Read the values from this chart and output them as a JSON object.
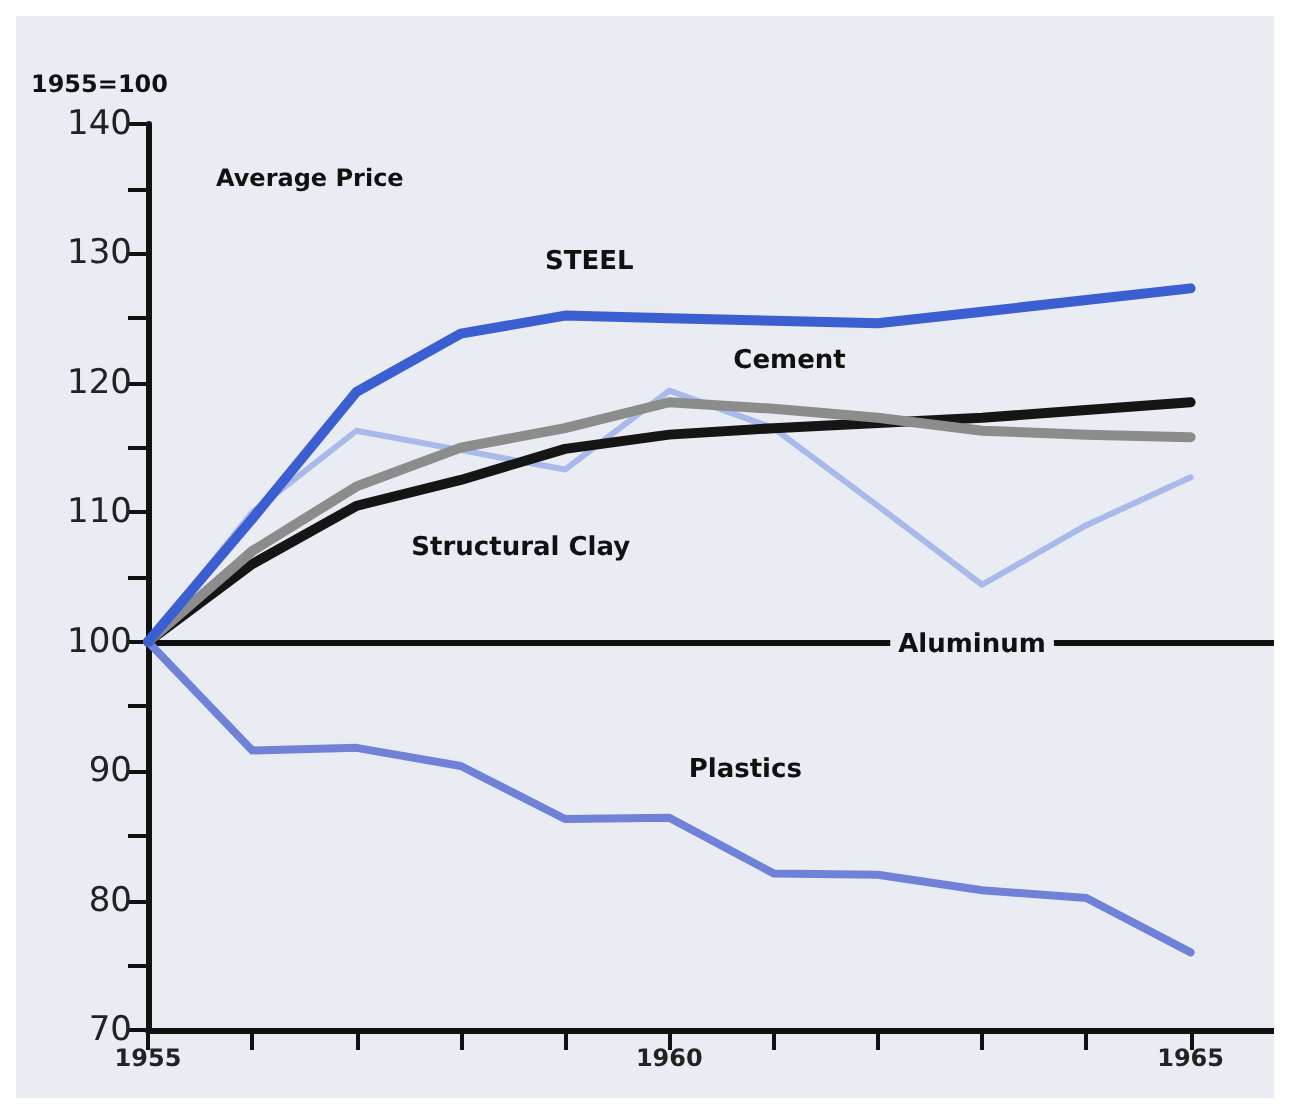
{
  "chart_data": {
    "type": "line",
    "ylabel": "1955=100",
    "annotations": [
      "Average Price"
    ],
    "x": [
      1955,
      1956,
      1957,
      1958,
      1959,
      1960,
      1961,
      1962,
      1963,
      1964,
      1965
    ],
    "series": [
      {
        "name": "STEEL",
        "color": "#3b5fd0",
        "values": [
          100,
          109.5,
          119.3,
          123.8,
          125.2,
          125,
          124.8,
          124.6,
          125.5,
          126.4,
          127.3
        ]
      },
      {
        "name": "Cement",
        "color": "#8c8c8c",
        "values": [
          100,
          107,
          112,
          115,
          116.5,
          118.5,
          118,
          117.3,
          116.3,
          116,
          115.8
        ]
      },
      {
        "name": "Structural Clay",
        "color": "#151515",
        "values": [
          100,
          106,
          110.5,
          112.5,
          114.9,
          116,
          116.5,
          116.9,
          117.3,
          117.9,
          118.5
        ]
      },
      {
        "name": "Aluminum",
        "color": "#a9b9ea",
        "values": [
          100,
          110,
          116.3,
          114.8,
          113.3,
          119.4,
          116.5,
          110.5,
          104.4,
          109,
          112.7
        ]
      },
      {
        "name": "Plastics",
        "color": "#6f82d8",
        "values": [
          100,
          91.6,
          91.8,
          90.4,
          86.3,
          86.4,
          82.1,
          82,
          80.8,
          80.2,
          76
        ]
      }
    ],
    "xlim": [
      1955,
      1965.8
    ],
    "xticks": [
      1955,
      {
        "value": 1956,
        "label": null
      },
      {
        "value": 1957,
        "label": null
      },
      {
        "value": 1958,
        "label": null
      },
      {
        "value": 1959,
        "label": null
      },
      1960,
      {
        "value": 1961,
        "label": null
      },
      {
        "value": 1962,
        "label": null
      },
      {
        "value": 1963,
        "label": null
      },
      {
        "value": 1964,
        "label": null
      },
      1965
    ],
    "ylim": [
      70,
      140
    ],
    "yticks": [
      70,
      {
        "value": 75,
        "label": null
      },
      80,
      {
        "value": 85,
        "label": null
      },
      90,
      {
        "value": 95,
        "label": null
      },
      100,
      {
        "value": 105,
        "label": null
      },
      110,
      {
        "value": 115,
        "label": null
      },
      120,
      {
        "value": 125,
        "label": null
      },
      130,
      {
        "value": 135,
        "label": null
      },
      140
    ],
    "ref_lines": [
      {
        "axis": "y",
        "value": 100,
        "color": "#111111"
      }
    ],
    "grid": false,
    "legend": false,
    "marker": "none",
    "line_style": "solid"
  }
}
